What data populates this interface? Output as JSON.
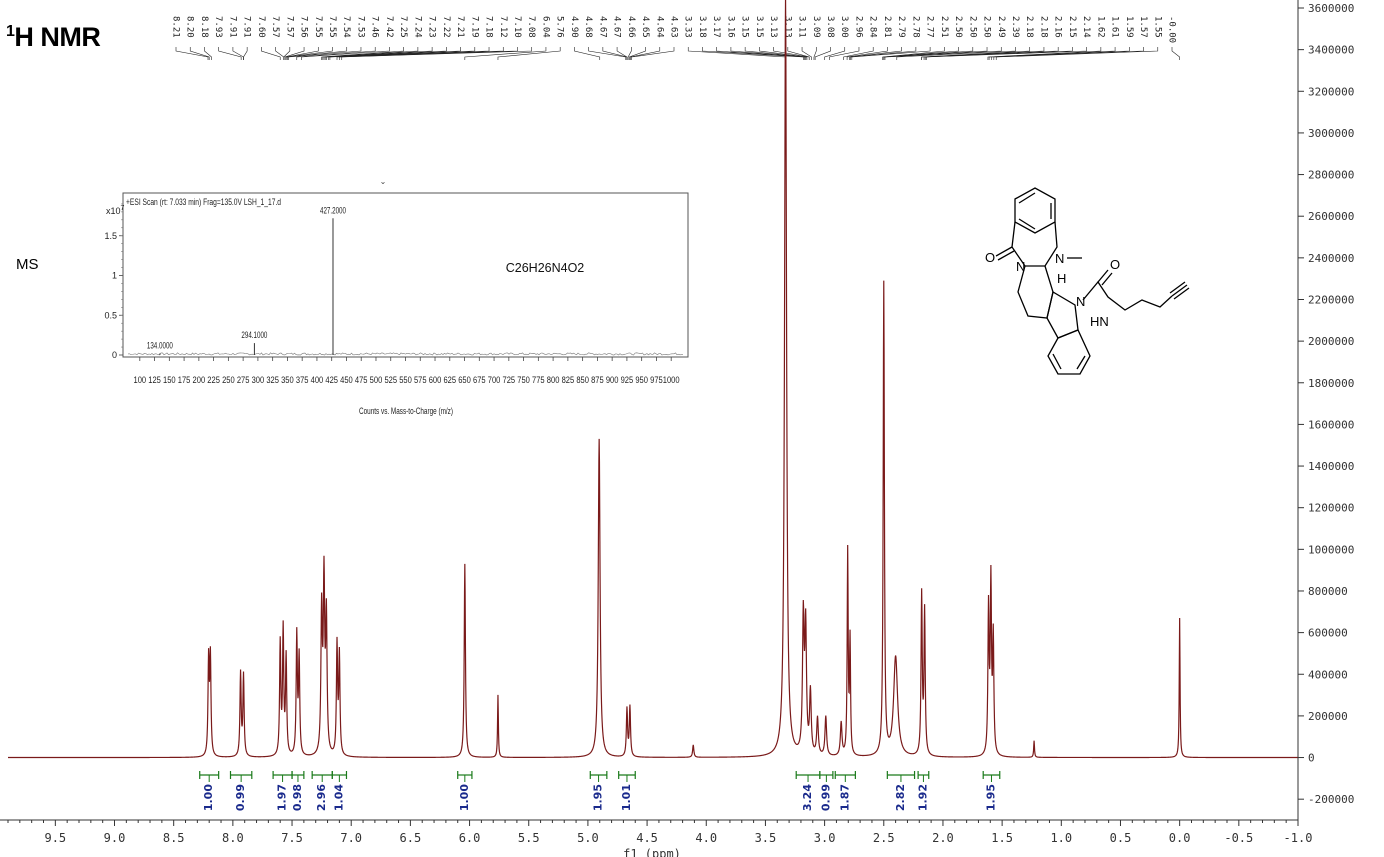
{
  "header": {
    "nucleus_sup": "1",
    "title_rest": "H NMR"
  },
  "ms_label": "MS",
  "nmr": {
    "type": "line",
    "x_axis": {
      "range": [
        -1.0,
        9.9
      ],
      "reversed": true,
      "ticks": [
        9.5,
        9.0,
        8.5,
        8.0,
        7.5,
        7.0,
        6.5,
        6.0,
        5.5,
        5.0,
        4.5,
        4.0,
        3.5,
        3.0,
        2.5,
        2.0,
        1.5,
        1.0,
        0.5,
        0.0,
        -0.5,
        -1.0
      ],
      "tick_labels": [
        "9.5",
        "9.0",
        "8.5",
        "8.0",
        "7.5",
        "7.0",
        "6.5",
        "6.0",
        "5.5",
        "5.0",
        "4.5",
        "4.0",
        "3.5",
        "3.0",
        "2.5",
        "2.0",
        "1.5",
        "1.0",
        "0.5",
        "0.0",
        "-0.5",
        "-1.0"
      ],
      "label": "f1 (ppm)"
    },
    "y_axis": {
      "range": [
        -300000,
        3600000
      ],
      "ticks": [
        -200000,
        0,
        200000,
        400000,
        600000,
        800000,
        1000000,
        1200000,
        1400000,
        1600000,
        1800000,
        2000000,
        2200000,
        2400000,
        2600000,
        2800000,
        3000000,
        3200000,
        3400000,
        3600000
      ],
      "tick_labels": [
        "-200000",
        "0",
        "200000",
        "400000",
        "600000",
        "800000",
        "1000000",
        "1200000",
        "1400000",
        "1600000",
        "1800000",
        "2000000",
        "2200000",
        "2400000",
        "2600000",
        "2800000",
        "3000000",
        "3200000",
        "3400000",
        "3600000"
      ],
      "position": "right"
    },
    "line_color": "#7a1a1a",
    "peaks": [
      {
        "x": 8.205,
        "y": 460000,
        "w": 0.006
      },
      {
        "x": 8.19,
        "y": 470000,
        "w": 0.006
      },
      {
        "x": 7.935,
        "y": 400000,
        "w": 0.006
      },
      {
        "x": 7.91,
        "y": 390000,
        "w": 0.006
      },
      {
        "x": 7.6,
        "y": 540000,
        "w": 0.006
      },
      {
        "x": 7.575,
        "y": 600000,
        "w": 0.006
      },
      {
        "x": 7.55,
        "y": 470000,
        "w": 0.006
      },
      {
        "x": 7.46,
        "y": 580000,
        "w": 0.006
      },
      {
        "x": 7.44,
        "y": 470000,
        "w": 0.006
      },
      {
        "x": 7.25,
        "y": 680000,
        "w": 0.007
      },
      {
        "x": 7.23,
        "y": 820000,
        "w": 0.007
      },
      {
        "x": 7.21,
        "y": 650000,
        "w": 0.007
      },
      {
        "x": 7.12,
        "y": 530000,
        "w": 0.006
      },
      {
        "x": 7.1,
        "y": 480000,
        "w": 0.006
      },
      {
        "x": 6.04,
        "y": 930000,
        "w": 0.006
      },
      {
        "x": 5.76,
        "y": 300000,
        "w": 0.004
      },
      {
        "x": 4.905,
        "y": 1530000,
        "w": 0.009
      },
      {
        "x": 4.67,
        "y": 230000,
        "w": 0.006
      },
      {
        "x": 4.645,
        "y": 240000,
        "w": 0.006
      },
      {
        "x": 4.11,
        "y": 60000,
        "w": 0.006
      },
      {
        "x": 3.33,
        "y": 3650000,
        "w": 0.01
      },
      {
        "x": 3.18,
        "y": 650000,
        "w": 0.008
      },
      {
        "x": 3.16,
        "y": 600000,
        "w": 0.008
      },
      {
        "x": 3.12,
        "y": 300000,
        "w": 0.008
      },
      {
        "x": 3.06,
        "y": 180000,
        "w": 0.008
      },
      {
        "x": 2.99,
        "y": 190000,
        "w": 0.008
      },
      {
        "x": 2.86,
        "y": 160000,
        "w": 0.008
      },
      {
        "x": 2.805,
        "y": 980000,
        "w": 0.005
      },
      {
        "x": 2.785,
        "y": 550000,
        "w": 0.005
      },
      {
        "x": 2.5,
        "y": 2270000,
        "w": 0.006
      },
      {
        "x": 2.4,
        "y": 480000,
        "w": 0.02
      },
      {
        "x": 2.18,
        "y": 770000,
        "w": 0.006
      },
      {
        "x": 2.155,
        "y": 690000,
        "w": 0.006
      },
      {
        "x": 1.615,
        "y": 700000,
        "w": 0.006
      },
      {
        "x": 1.595,
        "y": 820000,
        "w": 0.006
      },
      {
        "x": 1.575,
        "y": 560000,
        "w": 0.006
      },
      {
        "x": 1.23,
        "y": 80000,
        "w": 0.004
      },
      {
        "x": 0.0,
        "y": 670000,
        "w": 0.004
      }
    ],
    "peak_labels": [
      "8.21",
      "8.20",
      "8.18",
      "7.93",
      "7.91",
      "7.91",
      "7.60",
      "7.57",
      "7.57",
      "7.56",
      "7.55",
      "7.55",
      "7.54",
      "7.53",
      "7.46",
      "7.42",
      "7.25",
      "7.24",
      "7.23",
      "7.22",
      "7.21",
      "7.19",
      "7.18",
      "7.12",
      "7.10",
      "7.08",
      "6.04",
      "5.76",
      "4.90",
      "4.68",
      "4.67",
      "4.67",
      "4.66",
      "4.65",
      "4.64",
      "4.63",
      "3.33",
      "3.18",
      "3.17",
      "3.16",
      "3.15",
      "3.15",
      "3.13",
      "3.13",
      "3.11",
      "3.09",
      "3.08",
      "3.00",
      "2.96",
      "2.84",
      "2.81",
      "2.79",
      "2.78",
      "2.77",
      "2.51",
      "2.50",
      "2.50",
      "2.50",
      "2.49",
      "2.39",
      "2.18",
      "2.18",
      "2.16",
      "2.15",
      "2.14",
      "1.62",
      "1.61",
      "1.59",
      "1.57",
      "1.55",
      "-0.00"
    ],
    "integrals": [
      {
        "x1": 8.28,
        "x2": 8.12,
        "value": "1.00"
      },
      {
        "x1": 8.02,
        "x2": 7.84,
        "value": "0.99"
      },
      {
        "x1": 7.66,
        "x2": 7.5,
        "value": "1.97"
      },
      {
        "x1": 7.5,
        "x2": 7.4,
        "value": "0.98"
      },
      {
        "x1": 7.33,
        "x2": 7.16,
        "value": "2.96"
      },
      {
        "x1": 7.16,
        "x2": 7.04,
        "value": "1.04"
      },
      {
        "x1": 6.1,
        "x2": 5.98,
        "value": "1.00"
      },
      {
        "x1": 4.98,
        "x2": 4.84,
        "value": "1.95"
      },
      {
        "x1": 4.74,
        "x2": 4.6,
        "value": "1.01"
      },
      {
        "x1": 3.24,
        "x2": 3.04,
        "value": "3.24"
      },
      {
        "x1": 3.04,
        "x2": 2.93,
        "value": "0.99"
      },
      {
        "x1": 2.91,
        "x2": 2.74,
        "value": "1.87"
      },
      {
        "x1": 2.47,
        "x2": 2.24,
        "value": "2.82"
      },
      {
        "x1": 2.21,
        "x2": 2.12,
        "value": "1.92"
      },
      {
        "x1": 1.66,
        "x2": 1.52,
        "value": "1.95"
      }
    ]
  },
  "ms": {
    "type": "bar",
    "scan_title": "+ESI Scan (rt: 7.033 min) Frag=135.0V LSH_1_17.d",
    "y_exponent_base": "x10",
    "y_exponent": "7",
    "x_axis": {
      "range": [
        80,
        1020
      ],
      "ticks": [
        100,
        125,
        150,
        175,
        200,
        225,
        250,
        275,
        300,
        325,
        350,
        375,
        400,
        425,
        450,
        475,
        500,
        525,
        550,
        575,
        600,
        625,
        650,
        675,
        700,
        725,
        750,
        775,
        800,
        825,
        850,
        875,
        900,
        925,
        950,
        975,
        1000
      ],
      "tick_labels": [
        "100",
        "125",
        "150",
        "175",
        "200",
        "225",
        "250",
        "275",
        "300",
        "325",
        "350",
        "375",
        "400",
        "425",
        "450",
        "475",
        "500",
        "525",
        "550",
        "575",
        "600",
        "625",
        "650",
        "675",
        "700",
        "725",
        "750",
        "775",
        "800",
        "825",
        "850",
        "875",
        "900",
        "925",
        "950",
        "975",
        "1000"
      ],
      "label": "Counts vs. Mass-to-Charge (m/z)"
    },
    "y_axis": {
      "range": [
        0,
        2.0
      ],
      "ticks": [
        0,
        0.5,
        1,
        1.5
      ],
      "tick_labels": [
        "0",
        "0.5",
        "1",
        "1.5"
      ]
    },
    "peaks": [
      {
        "mz": 134.0,
        "value": 0.02,
        "label": "134.0000"
      },
      {
        "mz": 294.1,
        "value": 0.15,
        "label": "294.1000"
      },
      {
        "mz": 427.2,
        "value": 1.72,
        "label": "427.2000"
      }
    ],
    "formula": "C26H26N4O2"
  },
  "structure": {
    "labels": {
      "oxygen_1": "O",
      "n_methyl": "N",
      "methyl_dash": "—",
      "n_ring": "N",
      "h_stereo": "H",
      "n_indole": "N",
      "oxygen_2": "O",
      "amide_nh": "HN"
    }
  },
  "colors": {
    "spectrum": "#7a1a1a",
    "integral_bracket": "#1a7a1a",
    "integral_text": "#1a2a8c",
    "axis": "#333333"
  }
}
